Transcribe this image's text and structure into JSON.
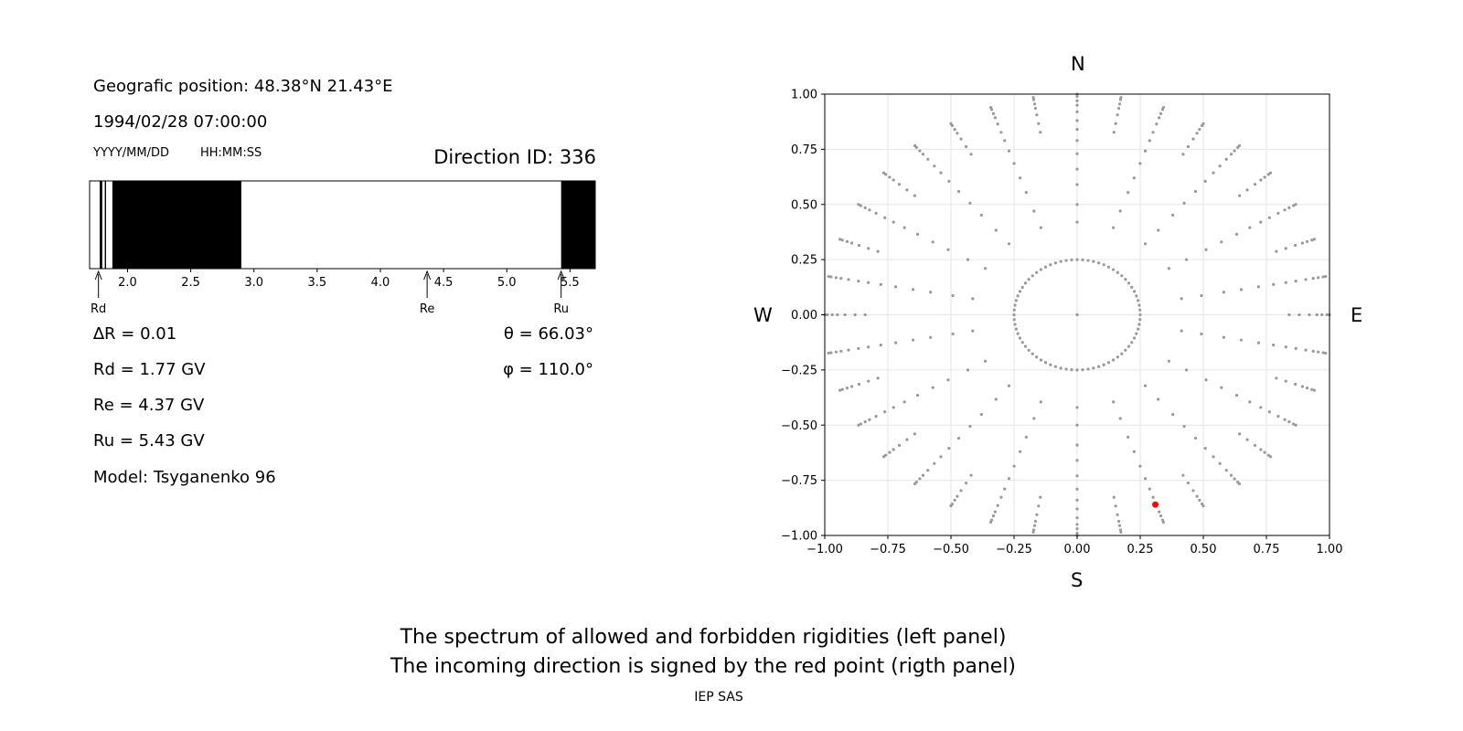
{
  "info": {
    "position": "Geografic position: 48.38°N 21.43°E",
    "datetime": "1994/02/28 07:00:00",
    "date_format": "YYYY/MM/DD",
    "time_format": "HH:MM:SS",
    "direction": "Direction ID: 336"
  },
  "params": {
    "dR": "∆R = 0.01",
    "theta": "θ = 66.03°",
    "rd": "Rd = 1.77 GV",
    "phi": "φ = 110.0°",
    "re": "Re = 4.37 GV",
    "ru": "Ru = 5.43 GV",
    "model": "Model: Tsyganenko 96"
  },
  "markers": {
    "rd": "Rd",
    "re": "Re",
    "ru": "Ru"
  },
  "compass": {
    "n": "N",
    "s": "S",
    "w": "W",
    "e": "E"
  },
  "caption": {
    "line1": "The spectrum of allowed and forbidden rigidities (left panel)",
    "line2": "The incoming direction is signed by the red point (rigth panel)"
  },
  "credit": "IEP SAS",
  "colors": {
    "forbidden": "#000000",
    "allowed": "#ffffff",
    "grid_points": "#999999",
    "selected": "#ff0000"
  },
  "chart_data": [
    {
      "type": "heatmap",
      "xlim": [
        1.7,
        5.7
      ],
      "xticks": [
        2.0,
        2.5,
        3.0,
        3.5,
        4.0,
        4.5,
        5.0,
        5.5
      ],
      "xtick_labels": [
        "2.0",
        "2.5",
        "3.0",
        "3.5",
        "4.0",
        "4.5",
        "5.0",
        "5.5"
      ],
      "forbidden_intervals": [
        [
          1.78,
          1.8
        ],
        [
          1.82,
          1.83
        ],
        [
          1.88,
          2.9
        ],
        [
          5.43,
          5.7
        ]
      ],
      "markers": [
        {
          "label": "Rd",
          "x": 1.77
        },
        {
          "label": "Re",
          "x": 4.37
        },
        {
          "label": "Ru",
          "x": 5.43
        }
      ]
    },
    {
      "type": "scatter",
      "xlim": [
        -1.0,
        1.0
      ],
      "ylim": [
        -1.0,
        1.0
      ],
      "xticks": [
        "−1.00",
        "−0.75",
        "−0.50",
        "−0.25",
        "0.00",
        "0.25",
        "0.50",
        "0.75",
        "1.00"
      ],
      "yticks": [
        "1.00",
        "0.75",
        "0.50",
        "0.25",
        "0.00",
        "−0.25",
        "−0.50",
        "−0.75",
        "−1.00"
      ],
      "grid": true,
      "rings": [
        0.25,
        0.42,
        0.5,
        0.59,
        0.66,
        0.73,
        0.79,
        0.84,
        0.88,
        0.92,
        0.95,
        0.97,
        0.99,
        1.0
      ],
      "spokes_count": 36,
      "dense_rings_from": 0.84,
      "center": [
        0.0,
        0.0
      ],
      "selected_point": {
        "x": 0.31,
        "y": -0.86
      }
    }
  ]
}
